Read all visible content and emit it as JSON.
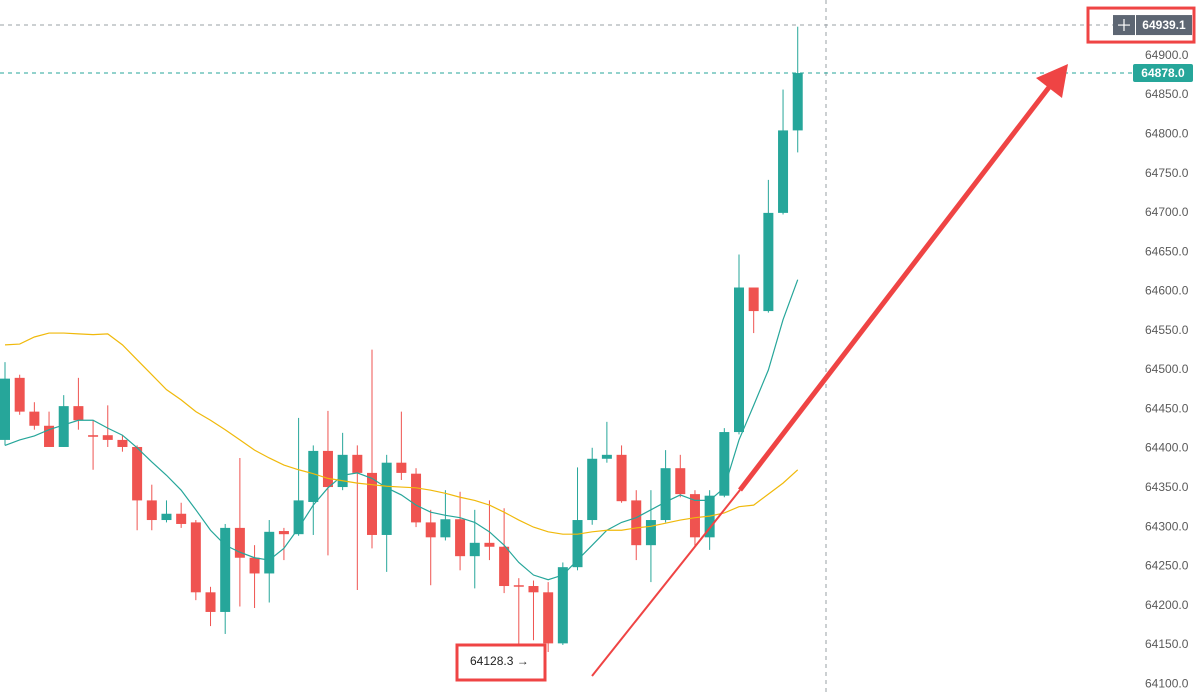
{
  "chart_data": {
    "type": "candlestick",
    "ylim": [
      64085,
      64971
    ],
    "yticks": [
      {
        "value": 64100,
        "label": "64100.0"
      },
      {
        "value": 64150,
        "label": "64150.0"
      },
      {
        "value": 64200,
        "label": "64200.0"
      },
      {
        "value": 64250,
        "label": "64250.0"
      },
      {
        "value": 64300,
        "label": "64300.0"
      },
      {
        "value": 64350,
        "label": "64350.0"
      },
      {
        "value": 64400,
        "label": "64400.0"
      },
      {
        "value": 64450,
        "label": "64450.0"
      },
      {
        "value": 64500,
        "label": "64500.0"
      },
      {
        "value": 64550,
        "label": "64550.0"
      },
      {
        "value": 64600,
        "label": "64600.0"
      },
      {
        "value": 64650,
        "label": "64650.0"
      },
      {
        "value": 64700,
        "label": "64700.0"
      },
      {
        "value": 64750,
        "label": "64750.0"
      },
      {
        "value": 64800,
        "label": "64800.0"
      },
      {
        "value": 64850,
        "label": "64850.0"
      },
      {
        "value": 64900,
        "label": "64900.0"
      }
    ],
    "up_color": "#26a69a",
    "down_color": "#ef5350",
    "open": [
      64411,
      64490,
      64447,
      64429,
      64402,
      64454,
      64417,
      64417,
      64411,
      64402,
      64334,
      64309,
      64317,
      64306,
      64217,
      64192,
      64299,
      64261,
      64241,
      64295,
      64291,
      64332,
      64397,
      64351,
      64392,
      64369,
      64290,
      64382,
      64368,
      64306,
      64287,
      64310,
      64263,
      64280,
      64275,
      64226,
      64225,
      64217,
      64152,
      64249,
      64309,
      64387,
      64392,
      64334,
      64277,
      64309,
      64375,
      64342,
      64287,
      64340,
      64421,
      64605,
      64575,
      64700,
      64805
    ],
    "high": [
      64510,
      64494,
      64459,
      64447,
      64468,
      64490,
      64436,
      64455,
      64417,
      64404,
      64354,
      64334,
      64331,
      64309,
      64224,
      64304,
      64388,
      64277,
      64309,
      64299,
      64439,
      64404,
      64448,
      64420,
      64404,
      64526,
      64392,
      64447,
      64375,
      64322,
      64347,
      64345,
      64322,
      64334,
      64324,
      64235,
      64232,
      64230,
      64255,
      64376,
      64401,
      64434,
      64404,
      64347,
      64347,
      64398,
      64392,
      64347,
      64347,
      64426,
      64647,
      64605,
      64742,
      64857,
      64937
    ],
    "low": [
      64404,
      64443,
      64424,
      64402,
      64402,
      64424,
      64373,
      64402,
      64396,
      64296,
      64296,
      64306,
      64299,
      64207,
      64174,
      64164,
      64199,
      64197,
      64204,
      64258,
      64289,
      64290,
      64264,
      64347,
      64220,
      64273,
      64243,
      64360,
      64300,
      64226,
      64283,
      64245,
      64222,
      64258,
      64216,
      64128.3,
      64156,
      64141,
      64150,
      64245,
      64303,
      64382,
      64331,
      64258,
      64230,
      64306,
      64338,
      64275,
      64271,
      64338,
      64418,
      64547,
      64573,
      64698,
      64777
    ],
    "close": [
      64489,
      64447,
      64429,
      64402,
      64454,
      64436,
      64415,
      64411,
      64402,
      64334,
      64309,
      64317,
      64304,
      64217,
      64192,
      64299,
      64261,
      64241,
      64294,
      64291,
      64334,
      64397,
      64351,
      64392,
      64369,
      64290,
      64382,
      64369,
      64306,
      64287,
      64310,
      64263,
      64280,
      64275,
      64225,
      64225,
      64217,
      64152,
      64249,
      64309,
      64387,
      64392,
      64333,
      64277,
      64309,
      64375,
      64342,
      64287,
      64340,
      64421,
      64605,
      64575,
      64700,
      64805,
      64878
    ],
    "overlays": [
      {
        "color": "#26a69a",
        "values": [
          64404,
          64411,
          64416,
          64424,
          64430,
          64436,
          64436,
          64426,
          64417,
          64401,
          64383,
          64366,
          64347,
          64322,
          64296,
          64277,
          64268,
          64261,
          64258,
          64273,
          64299,
          64328,
          64350,
          64366,
          64369,
          64362,
          64350,
          64341,
          64328,
          64319,
          64315,
          64312,
          64306,
          64294,
          64277,
          64255,
          64239,
          64233,
          64239,
          64258,
          64277,
          64296,
          64306,
          64312,
          64322,
          64332,
          64341,
          64334,
          64334,
          64350,
          64411,
          64455,
          64500,
          64564,
          64615
        ]
      },
      {
        "color": "#f0b90b",
        "values": [
          64532,
          64533,
          64542,
          64547,
          64547,
          64546,
          64545,
          64546,
          64532,
          64513,
          64494,
          64475,
          64462,
          64447,
          64436,
          64424,
          64411,
          64398,
          64388,
          64379,
          64373,
          64368,
          64362,
          64359,
          64356,
          64354,
          64352,
          64351,
          64350,
          64347,
          64343,
          64338,
          64334,
          64328,
          64319,
          64309,
          64300,
          64294,
          64291,
          64291,
          64294,
          64296,
          64296,
          64299,
          64301,
          64305,
          64309,
          64312,
          64314,
          64318,
          64326,
          64328,
          64342,
          64356,
          64373
        ]
      }
    ],
    "crosshair_price": 64939.1,
    "last_price": {
      "value": 64878,
      "label": "64878.0"
    },
    "low_marker": {
      "value": 64128.3,
      "label": "64128.3 →"
    }
  }
}
